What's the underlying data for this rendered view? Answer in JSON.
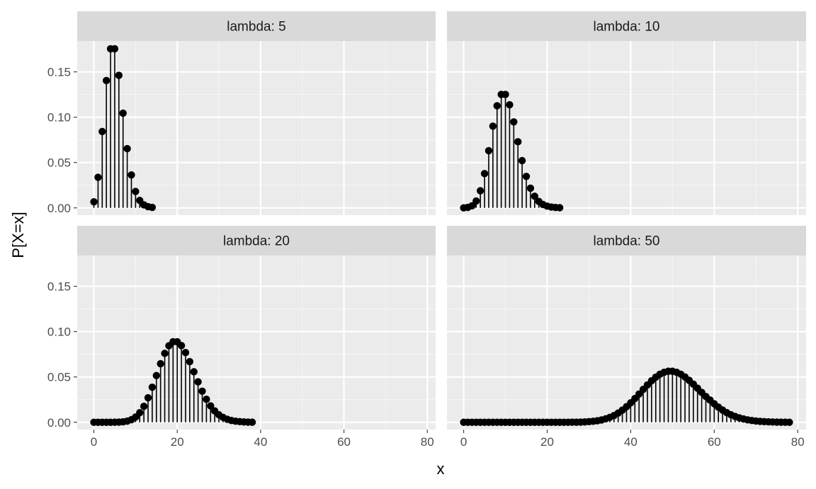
{
  "colors": {
    "panel_background": "#EBEBEB",
    "strip_background": "#D9D9D9",
    "grid_major": "#FFFFFF",
    "grid_minor": "#F5F5F5",
    "marks": "#000000",
    "tick_text": "#4D4D4D"
  },
  "chart_data": {
    "type": "scatter",
    "style": "faceted lollipop (vertical segments from 0 with point markers)",
    "xlabel": "x",
    "ylabel": "P[X=x]",
    "xlim": [
      -4,
      82
    ],
    "ylim": [
      -0.008,
      0.184
    ],
    "x_ticks": [
      0,
      20,
      40,
      60,
      80
    ],
    "y_ticks": [
      0.0,
      0.05,
      0.1,
      0.15
    ],
    "x_tick_labels": [
      "0",
      "20",
      "40",
      "60",
      "80"
    ],
    "y_tick_labels": [
      "0.00",
      "0.05",
      "0.10",
      "0.15"
    ],
    "grid": true,
    "facets": [
      {
        "label": "lambda: 5",
        "x": [
          0,
          1,
          2,
          3,
          4,
          5,
          6,
          7,
          8,
          9,
          10,
          11,
          12,
          13,
          14
        ],
        "y": [
          0.0067,
          0.0337,
          0.0842,
          0.1404,
          0.1755,
          0.1755,
          0.1462,
          0.1044,
          0.0653,
          0.0363,
          0.0181,
          0.0082,
          0.0034,
          0.0013,
          0.0005
        ]
      },
      {
        "label": "lambda: 10",
        "x": [
          0,
          1,
          2,
          3,
          4,
          5,
          6,
          7,
          8,
          9,
          10,
          11,
          12,
          13,
          14,
          15,
          16,
          17,
          18,
          19,
          20,
          21,
          22,
          23
        ],
        "y": [
          0.0,
          0.0005,
          0.0023,
          0.0076,
          0.0189,
          0.0378,
          0.0631,
          0.0901,
          0.1126,
          0.1251,
          0.1251,
          0.1137,
          0.0948,
          0.0729,
          0.0521,
          0.0347,
          0.0217,
          0.0128,
          0.0071,
          0.0037,
          0.0019,
          0.0009,
          0.0004,
          0.0002
        ]
      },
      {
        "label": "lambda: 20",
        "x": [
          0,
          1,
          2,
          3,
          4,
          5,
          6,
          7,
          8,
          9,
          10,
          11,
          12,
          13,
          14,
          15,
          16,
          17,
          18,
          19,
          20,
          21,
          22,
          23,
          24,
          25,
          26,
          27,
          28,
          29,
          30,
          31,
          32,
          33,
          34,
          35,
          36,
          37,
          38
        ],
        "y": [
          0.0,
          0.0,
          0.0,
          0.0,
          0.0,
          0.0001,
          0.0002,
          0.0005,
          0.0013,
          0.0029,
          0.0058,
          0.0106,
          0.0176,
          0.0271,
          0.0387,
          0.0516,
          0.0646,
          0.076,
          0.0844,
          0.0888,
          0.0888,
          0.0846,
          0.0769,
          0.0669,
          0.0557,
          0.0446,
          0.0343,
          0.0254,
          0.0181,
          0.0125,
          0.0083,
          0.0054,
          0.0034,
          0.002,
          0.0012,
          0.0007,
          0.0004,
          0.0002,
          0.0001
        ]
      },
      {
        "label": "lambda: 50",
        "x": [
          0,
          1,
          2,
          3,
          4,
          5,
          6,
          7,
          8,
          9,
          10,
          11,
          12,
          13,
          14,
          15,
          16,
          17,
          18,
          19,
          20,
          21,
          22,
          23,
          24,
          25,
          26,
          27,
          28,
          29,
          30,
          31,
          32,
          33,
          34,
          35,
          36,
          37,
          38,
          39,
          40,
          41,
          42,
          43,
          44,
          45,
          46,
          47,
          48,
          49,
          50,
          51,
          52,
          53,
          54,
          55,
          56,
          57,
          58,
          59,
          60,
          61,
          62,
          63,
          64,
          65,
          66,
          67,
          68,
          69,
          70,
          71,
          72,
          73,
          74,
          75,
          76,
          77,
          78
        ],
        "y": [
          0.0,
          0.0,
          0.0,
          0.0,
          0.0,
          0.0,
          0.0,
          0.0,
          0.0,
          0.0,
          0.0,
          0.0,
          0.0,
          0.0,
          0.0,
          0.0,
          0.0,
          0.0,
          0.0,
          0.0,
          0.0,
          0.0,
          0.0,
          0.0,
          0.0,
          0.0,
          0.0001,
          0.0001,
          0.0002,
          0.0004,
          0.0007,
          0.0011,
          0.0017,
          0.0026,
          0.0038,
          0.0054,
          0.0075,
          0.0102,
          0.0134,
          0.0172,
          0.0215,
          0.0262,
          0.0312,
          0.0363,
          0.0412,
          0.0458,
          0.0498,
          0.053,
          0.0552,
          0.0563,
          0.0563,
          0.0552,
          0.053,
          0.05,
          0.0463,
          0.0421,
          0.0376,
          0.033,
          0.0284,
          0.0245,
          0.0204,
          0.0167,
          0.0135,
          0.0107,
          0.0083,
          0.0065,
          0.0049,
          0.0037,
          0.0027,
          0.002,
          0.0014,
          0.001,
          0.0007,
          0.0005,
          0.0003,
          0.0002,
          0.0001,
          0.0001,
          0.0
        ]
      }
    ]
  }
}
